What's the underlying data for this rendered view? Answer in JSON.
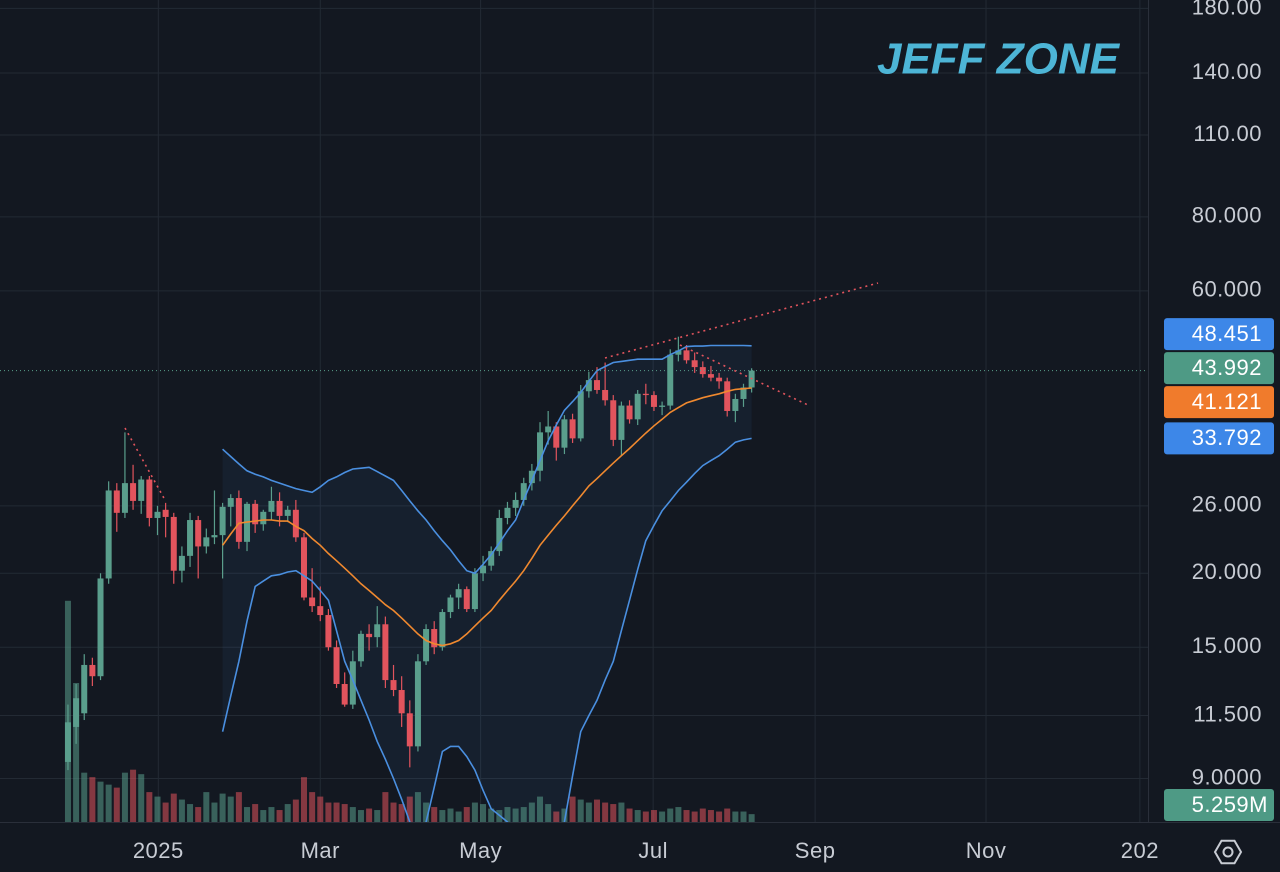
{
  "chart_data": {
    "type": "candlestick",
    "annotation": "JEFF ZONE",
    "log_scale": true,
    "grid": true,
    "ylim": [
      7.6,
      186
    ],
    "yticks": [
      {
        "value": 9,
        "label": "9.0000"
      },
      {
        "value": 11.5,
        "label": "11.500"
      },
      {
        "value": 15,
        "label": "15.000"
      },
      {
        "value": 20,
        "label": "20.000"
      },
      {
        "value": 26,
        "label": "26.000"
      },
      {
        "value": 60,
        "label": "60.000"
      },
      {
        "value": 80,
        "label": "80.000"
      },
      {
        "value": 110,
        "label": "110.00"
      },
      {
        "value": 140,
        "label": "140.00"
      },
      {
        "value": 180,
        "label": "180.00"
      }
    ],
    "xlim": [
      -8.35,
      132.7
    ],
    "xticks": [
      {
        "value": 11.1,
        "label": "2025"
      },
      {
        "value": 31.0,
        "label": "Mar"
      },
      {
        "value": 50.7,
        "label": "May"
      },
      {
        "value": 71.9,
        "label": "Jul"
      },
      {
        "value": 91.8,
        "label": "Sep"
      },
      {
        "value": 112.8,
        "label": "Nov"
      },
      {
        "value": 131.7,
        "label": "202"
      }
    ],
    "up_color": "#5a9e8c",
    "down_color": "#e2545d",
    "band_fill": "rgba(74,144,226,0.07)",
    "ohlc": [
      [
        9.6,
        12.0,
        9.3,
        11.2
      ],
      [
        11.0,
        13.0,
        10.3,
        12.3
      ],
      [
        11.6,
        14.6,
        11.3,
        14.0
      ],
      [
        14.0,
        14.4,
        12.9,
        13.4
      ],
      [
        13.4,
        20.0,
        13.2,
        19.6
      ],
      [
        19.6,
        28.6,
        19.2,
        27.6
      ],
      [
        27.6,
        28.4,
        23.5,
        25.3
      ],
      [
        25.3,
        34.6,
        24.8,
        28.4
      ],
      [
        28.4,
        30.5,
        25.6,
        26.5
      ],
      [
        26.5,
        29.2,
        25.2,
        28.8
      ],
      [
        28.8,
        29.2,
        24.0,
        24.8
      ],
      [
        24.8,
        26.0,
        23.2,
        25.4
      ],
      [
        25.6,
        26.3,
        23.0,
        24.9
      ],
      [
        24.9,
        25.3,
        19.2,
        20.2
      ],
      [
        20.2,
        22.2,
        19.3,
        21.4
      ],
      [
        21.4,
        25.3,
        20.5,
        24.6
      ],
      [
        24.6,
        25.0,
        19.6,
        22.2
      ],
      [
        22.2,
        23.8,
        21.6,
        23.0
      ],
      [
        23.0,
        27.6,
        22.4,
        23.2
      ],
      [
        23.2,
        26.3,
        19.6,
        25.9
      ],
      [
        25.9,
        27.2,
        24.0,
        26.8
      ],
      [
        26.8,
        27.6,
        22.0,
        22.6
      ],
      [
        22.6,
        26.4,
        21.8,
        26.2
      ],
      [
        26.2,
        26.6,
        23.4,
        24.2
      ],
      [
        24.2,
        25.6,
        23.6,
        25.4
      ],
      [
        25.4,
        28.0,
        24.6,
        26.5
      ],
      [
        26.5,
        27.4,
        24.0,
        25.0
      ],
      [
        25.0,
        26.0,
        24.4,
        25.6
      ],
      [
        25.6,
        26.6,
        22.6,
        23.0
      ],
      [
        23.0,
        23.4,
        18.0,
        18.2
      ],
      [
        18.2,
        20.4,
        17.2,
        17.6
      ],
      [
        17.6,
        19.0,
        16.6,
        17.0
      ],
      [
        17.0,
        17.4,
        14.8,
        15.0
      ],
      [
        15.0,
        15.4,
        12.8,
        13.0
      ],
      [
        13.0,
        13.6,
        11.9,
        12.0
      ],
      [
        12.0,
        14.8,
        11.8,
        14.2
      ],
      [
        14.2,
        16.0,
        13.9,
        15.8
      ],
      [
        15.8,
        16.4,
        14.8,
        15.6
      ],
      [
        15.6,
        17.6,
        15.0,
        16.4
      ],
      [
        16.4,
        16.9,
        12.8,
        13.2
      ],
      [
        13.2,
        14.0,
        12.4,
        12.7
      ],
      [
        12.7,
        13.4,
        11.0,
        11.6
      ],
      [
        11.6,
        12.2,
        9.4,
        10.2
      ],
      [
        10.2,
        14.6,
        10.0,
        14.2
      ],
      [
        14.2,
        16.4,
        14.0,
        16.1
      ],
      [
        16.1,
        16.6,
        14.6,
        15.0
      ],
      [
        15.0,
        17.4,
        14.8,
        17.2
      ],
      [
        17.2,
        18.4,
        16.8,
        18.2
      ],
      [
        18.2,
        19.2,
        17.4,
        18.8
      ],
      [
        18.8,
        19.0,
        17.2,
        17.4
      ],
      [
        17.4,
        20.4,
        17.2,
        20.0
      ],
      [
        20.0,
        21.4,
        19.4,
        20.6
      ],
      [
        20.6,
        22.2,
        20.2,
        21.8
      ],
      [
        21.8,
        25.6,
        21.4,
        24.8
      ],
      [
        24.8,
        26.4,
        24.2,
        25.8
      ],
      [
        25.8,
        27.4,
        25.0,
        26.6
      ],
      [
        26.6,
        29.0,
        26.0,
        28.4
      ],
      [
        28.4,
        30.6,
        27.6,
        29.8
      ],
      [
        29.8,
        36.0,
        28.6,
        34.6
      ],
      [
        34.6,
        37.6,
        33.0,
        35.4
      ],
      [
        35.4,
        36.0,
        31.0,
        32.6
      ],
      [
        32.6,
        37.0,
        31.8,
        36.4
      ],
      [
        36.4,
        37.2,
        33.2,
        33.8
      ],
      [
        33.8,
        41.6,
        33.4,
        40.6
      ],
      [
        40.6,
        43.8,
        39.6,
        42.4
      ],
      [
        42.4,
        44.6,
        40.2,
        40.8
      ],
      [
        40.8,
        45.4,
        38.4,
        39.2
      ],
      [
        39.2,
        40.0,
        32.8,
        33.6
      ],
      [
        33.6,
        39.0,
        31.6,
        38.4
      ],
      [
        38.4,
        39.2,
        35.8,
        36.4
      ],
      [
        36.4,
        40.8,
        35.6,
        40.2
      ],
      [
        40.2,
        41.8,
        38.6,
        40.0
      ],
      [
        40.0,
        40.6,
        37.6,
        38.2
      ],
      [
        38.2,
        39.0,
        37.0,
        38.4
      ],
      [
        38.4,
        47.8,
        37.8,
        46.8
      ],
      [
        46.8,
        50.2,
        45.6,
        47.6
      ],
      [
        47.6,
        48.6,
        45.2,
        45.8
      ],
      [
        45.8,
        47.2,
        43.6,
        44.6
      ],
      [
        44.6,
        45.6,
        42.8,
        43.4
      ],
      [
        43.4,
        44.8,
        42.2,
        42.8
      ],
      [
        42.8,
        43.6,
        41.0,
        42.2
      ],
      [
        42.2,
        42.8,
        36.8,
        37.6
      ],
      [
        37.6,
        40.2,
        36.0,
        39.4
      ],
      [
        39.4,
        41.8,
        38.2,
        41.2
      ],
      [
        41.2,
        44.4,
        40.4,
        43.992
      ]
    ],
    "series": [
      {
        "color": "#4a8fe0",
        "values": [
          null,
          null,
          null,
          null,
          null,
          null,
          null,
          null,
          null,
          null,
          null,
          null,
          null,
          null,
          null,
          null,
          null,
          null,
          null,
          32.4,
          31.5,
          30.6,
          29.8,
          29.4,
          29.1,
          28.7,
          28.4,
          28.1,
          27.8,
          27.6,
          27.4,
          28.0,
          28.7,
          29.1,
          29.6,
          30.0,
          30.1,
          30.2,
          29.7,
          29.2,
          28.7,
          27.6,
          26.5,
          25.5,
          24.6,
          23.6,
          22.7,
          21.9,
          21.0,
          20.2,
          20.0,
          20.7,
          21.5,
          22.5,
          23.6,
          24.6,
          26.6,
          28.7,
          31.0,
          33.5,
          35.6,
          37.7,
          39.0,
          40.4,
          42.2,
          44.0,
          44.7,
          45.4,
          45.6,
          45.8,
          46.0,
          46.0,
          46.0,
          46.0,
          46.8,
          47.5,
          48.3,
          48.4,
          48.4,
          48.5,
          48.5,
          48.5,
          48.5,
          48.5,
          48.451
        ]
      },
      {
        "color": "#f0892f",
        "values": [
          null,
          null,
          null,
          null,
          null,
          null,
          null,
          null,
          null,
          null,
          null,
          null,
          null,
          null,
          null,
          null,
          null,
          null,
          null,
          22.3,
          23.3,
          24.3,
          24.4,
          24.5,
          24.6,
          24.6,
          24.5,
          24.5,
          24.0,
          23.6,
          22.9,
          22.3,
          21.6,
          21.0,
          20.4,
          19.8,
          19.2,
          18.7,
          18.2,
          17.7,
          17.3,
          16.8,
          16.3,
          15.8,
          15.4,
          15.2,
          15.1,
          15.2,
          15.4,
          15.8,
          16.3,
          16.8,
          17.3,
          18.0,
          18.7,
          19.4,
          20.2,
          21.2,
          22.3,
          23.2,
          24.1,
          25.0,
          26.0,
          27.0,
          28.1,
          28.9,
          29.8,
          30.7,
          31.6,
          32.5,
          33.5,
          34.5,
          35.5,
          36.4,
          37.4,
          38.1,
          38.8,
          39.2,
          39.6,
          39.9,
          40.2,
          40.6,
          40.9,
          41.0,
          41.121
        ]
      },
      {
        "color": "#4a8fe0",
        "values": [
          null,
          null,
          null,
          null,
          null,
          null,
          null,
          null,
          null,
          null,
          null,
          null,
          null,
          null,
          null,
          null,
          null,
          null,
          null,
          10.8,
          12.4,
          14.2,
          16.6,
          19.0,
          19.4,
          19.8,
          19.9,
          20.1,
          20.2,
          19.8,
          19.4,
          18.7,
          18.0,
          16.0,
          14.2,
          13.2,
          12.2,
          11.3,
          10.4,
          9.7,
          9.0,
          8.3,
          7.6,
          7.3,
          7.6,
          8.7,
          10.0,
          10.2,
          10.2,
          9.8,
          9.3,
          8.6,
          8.0,
          7.8,
          7.6,
          7.1,
          6.6,
          6.3,
          6.0,
          6.5,
          7.0,
          7.6,
          9.1,
          10.8,
          11.5,
          12.2,
          13.2,
          14.2,
          16.0,
          18.0,
          20.3,
          22.7,
          24.1,
          25.5,
          26.5,
          27.6,
          28.5,
          29.5,
          30.4,
          31.0,
          31.6,
          32.4,
          33.3,
          33.6,
          33.792
        ]
      }
    ],
    "price_labels": [
      {
        "value": 48.451,
        "label": "48.451",
        "color": "#3d87e8"
      },
      {
        "value": 43.992,
        "label": "43.992",
        "color": "#4e9a85"
      },
      {
        "value": 41.121,
        "label": "41.121",
        "color": "#f07b2c"
      },
      {
        "value": 33.792,
        "label": "33.792",
        "color": "#3d87e8"
      }
    ],
    "volume": {
      "ylim": [
        0,
        550
      ],
      "values": [
        148,
        93,
        33,
        30,
        27,
        25,
        23,
        33,
        35,
        32,
        20,
        17,
        13,
        19,
        15,
        12,
        10,
        20,
        13,
        19,
        17,
        20,
        10,
        12,
        8,
        10,
        8,
        12,
        15,
        30,
        20,
        17,
        13,
        13,
        12,
        10,
        8,
        9,
        8,
        20,
        13,
        12,
        17,
        20,
        13,
        10,
        8,
        9,
        7,
        10,
        13,
        12,
        9,
        8,
        10,
        9,
        10,
        13,
        17,
        12,
        7,
        9,
        17,
        15,
        13,
        15,
        13,
        12,
        13,
        9,
        8,
        7,
        8,
        7,
        9,
        10,
        8,
        7,
        9,
        8,
        7,
        9,
        7,
        7,
        5.259
      ],
      "value_labels": [
        null,
        null,
        null,
        null,
        null,
        null,
        null,
        null,
        null,
        null,
        null,
        null,
        null,
        null,
        null,
        null,
        null,
        null,
        null,
        null,
        null,
        null,
        null,
        null,
        null,
        null,
        null,
        null,
        null,
        null,
        null,
        null,
        null,
        null,
        null,
        null,
        null,
        null,
        null,
        null,
        null,
        null,
        null,
        null,
        null,
        null,
        null,
        null,
        null,
        null,
        null,
        null,
        null,
        null,
        null,
        null,
        null,
        null,
        null,
        null,
        null,
        null,
        null,
        null,
        null,
        null,
        null,
        null,
        null,
        null,
        null,
        null,
        null,
        null,
        null,
        null,
        null,
        null,
        null,
        null,
        null,
        null,
        null,
        null,
        "5.259M"
      ],
      "label_color": "#4e9a85"
    }
  }
}
